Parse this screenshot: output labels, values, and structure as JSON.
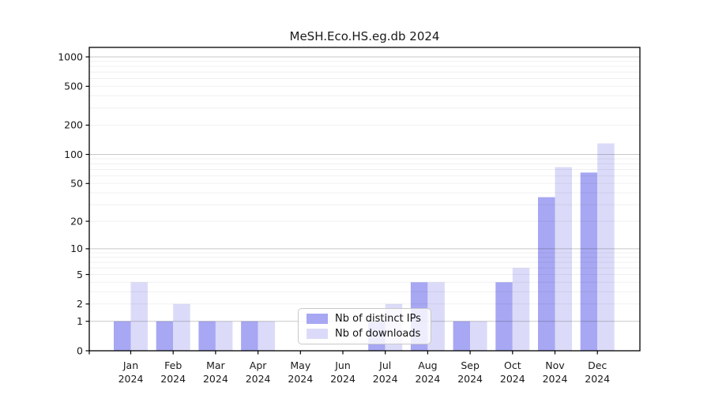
{
  "title": "MeSH.Eco.HS.eg.db 2024",
  "chart_data": {
    "type": "bar",
    "title": "MeSH.Eco.HS.eg.db 2024",
    "x_categories": [
      "Jan",
      "Feb",
      "Mar",
      "Apr",
      "May",
      "Jun",
      "Jul",
      "Aug",
      "Sep",
      "Oct",
      "Nov",
      "Dec"
    ],
    "x_sub_label": "2024",
    "y_scale": "log10(1+v)",
    "y_ticks": [
      0,
      1,
      2,
      5,
      10,
      20,
      50,
      100,
      200,
      500,
      1000
    ],
    "y_grid_major": [
      1,
      10,
      100,
      1000
    ],
    "ylim": [
      0,
      1250
    ],
    "grid": "horizontal, minor + major",
    "legend_position": "lower-center",
    "series": [
      {
        "name": "Nb of distinct IPs",
        "color": "#a7a7f3",
        "values": [
          1,
          1,
          1,
          1,
          0,
          0,
          1,
          4,
          1,
          4,
          36,
          65
        ]
      },
      {
        "name": "Nb of downloads",
        "color": "#dbdbf9",
        "values": [
          4,
          2,
          1,
          1,
          0,
          0,
          2,
          4,
          1,
          6,
          74,
          130
        ]
      }
    ]
  },
  "colors": {
    "grid_major": "#c9c9c9",
    "grid_minor": "#efefef",
    "frame": "#000000",
    "tick_label": "#1a1a1a",
    "background": "#ffffff"
  }
}
